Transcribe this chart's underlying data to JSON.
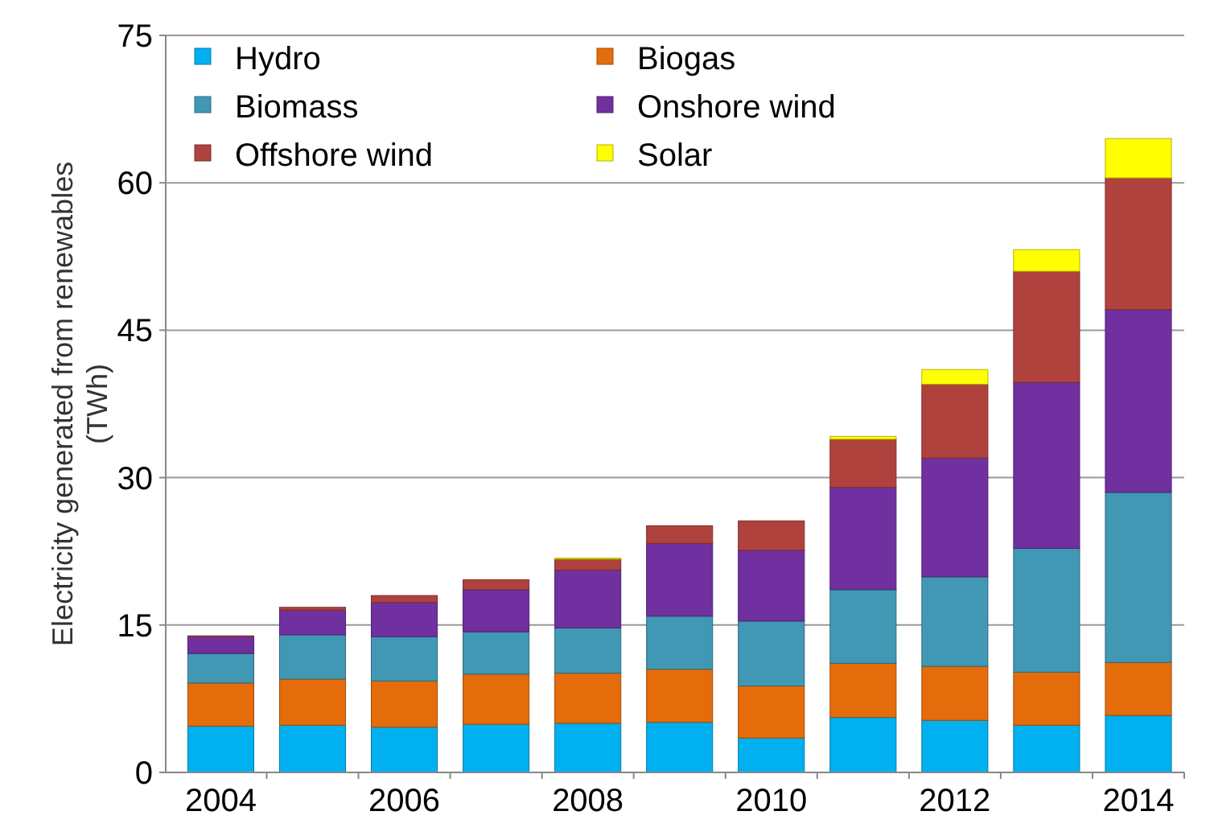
{
  "chart_data": {
    "type": "bar",
    "stacked": true,
    "ylabel": "Electricity generated from renewables (TWh)",
    "x": [
      2004,
      2005,
      2006,
      2007,
      2008,
      2009,
      2010,
      2011,
      2012,
      2013,
      2014
    ],
    "xlim": [
      2003.4,
      2014.5
    ],
    "xticks": [
      2004,
      2006,
      2008,
      2010,
      2012,
      2014
    ],
    "ylim": [
      0,
      75
    ],
    "yticks": [
      0,
      15,
      30,
      45,
      60,
      75
    ],
    "grid": "y",
    "legend": "top left",
    "series": [
      {
        "name": "Hydro",
        "color": "#00b0f0",
        "values": [
          4.7,
          4.8,
          4.6,
          4.9,
          5.0,
          5.1,
          3.5,
          5.6,
          5.3,
          4.8,
          5.8
        ]
      },
      {
        "name": "Biogas",
        "color": "#e46c0a",
        "values": [
          4.4,
          4.7,
          4.7,
          5.1,
          5.1,
          5.4,
          5.3,
          5.5,
          5.5,
          5.4,
          5.4
        ]
      },
      {
        "name": "Biomass",
        "color": "#4198b4",
        "values": [
          3.0,
          4.5,
          4.5,
          4.3,
          4.6,
          5.4,
          6.6,
          7.5,
          9.1,
          12.6,
          17.3
        ]
      },
      {
        "name": "Onshore wind",
        "color": "#7030a0",
        "values": [
          1.7,
          2.5,
          3.5,
          4.3,
          5.9,
          7.4,
          7.2,
          10.4,
          12.1,
          16.9,
          18.6
        ]
      },
      {
        "name": "Offshore wind",
        "color": "#b0423e",
        "values": [
          0.1,
          0.3,
          0.7,
          1.0,
          1.1,
          1.8,
          3.0,
          4.9,
          7.5,
          11.3,
          13.4
        ]
      },
      {
        "name": "Solar",
        "color": "#ffff00",
        "values": [
          0,
          0,
          0,
          0,
          0.1,
          0,
          0,
          0.3,
          1.5,
          2.2,
          4.0
        ]
      }
    ]
  }
}
